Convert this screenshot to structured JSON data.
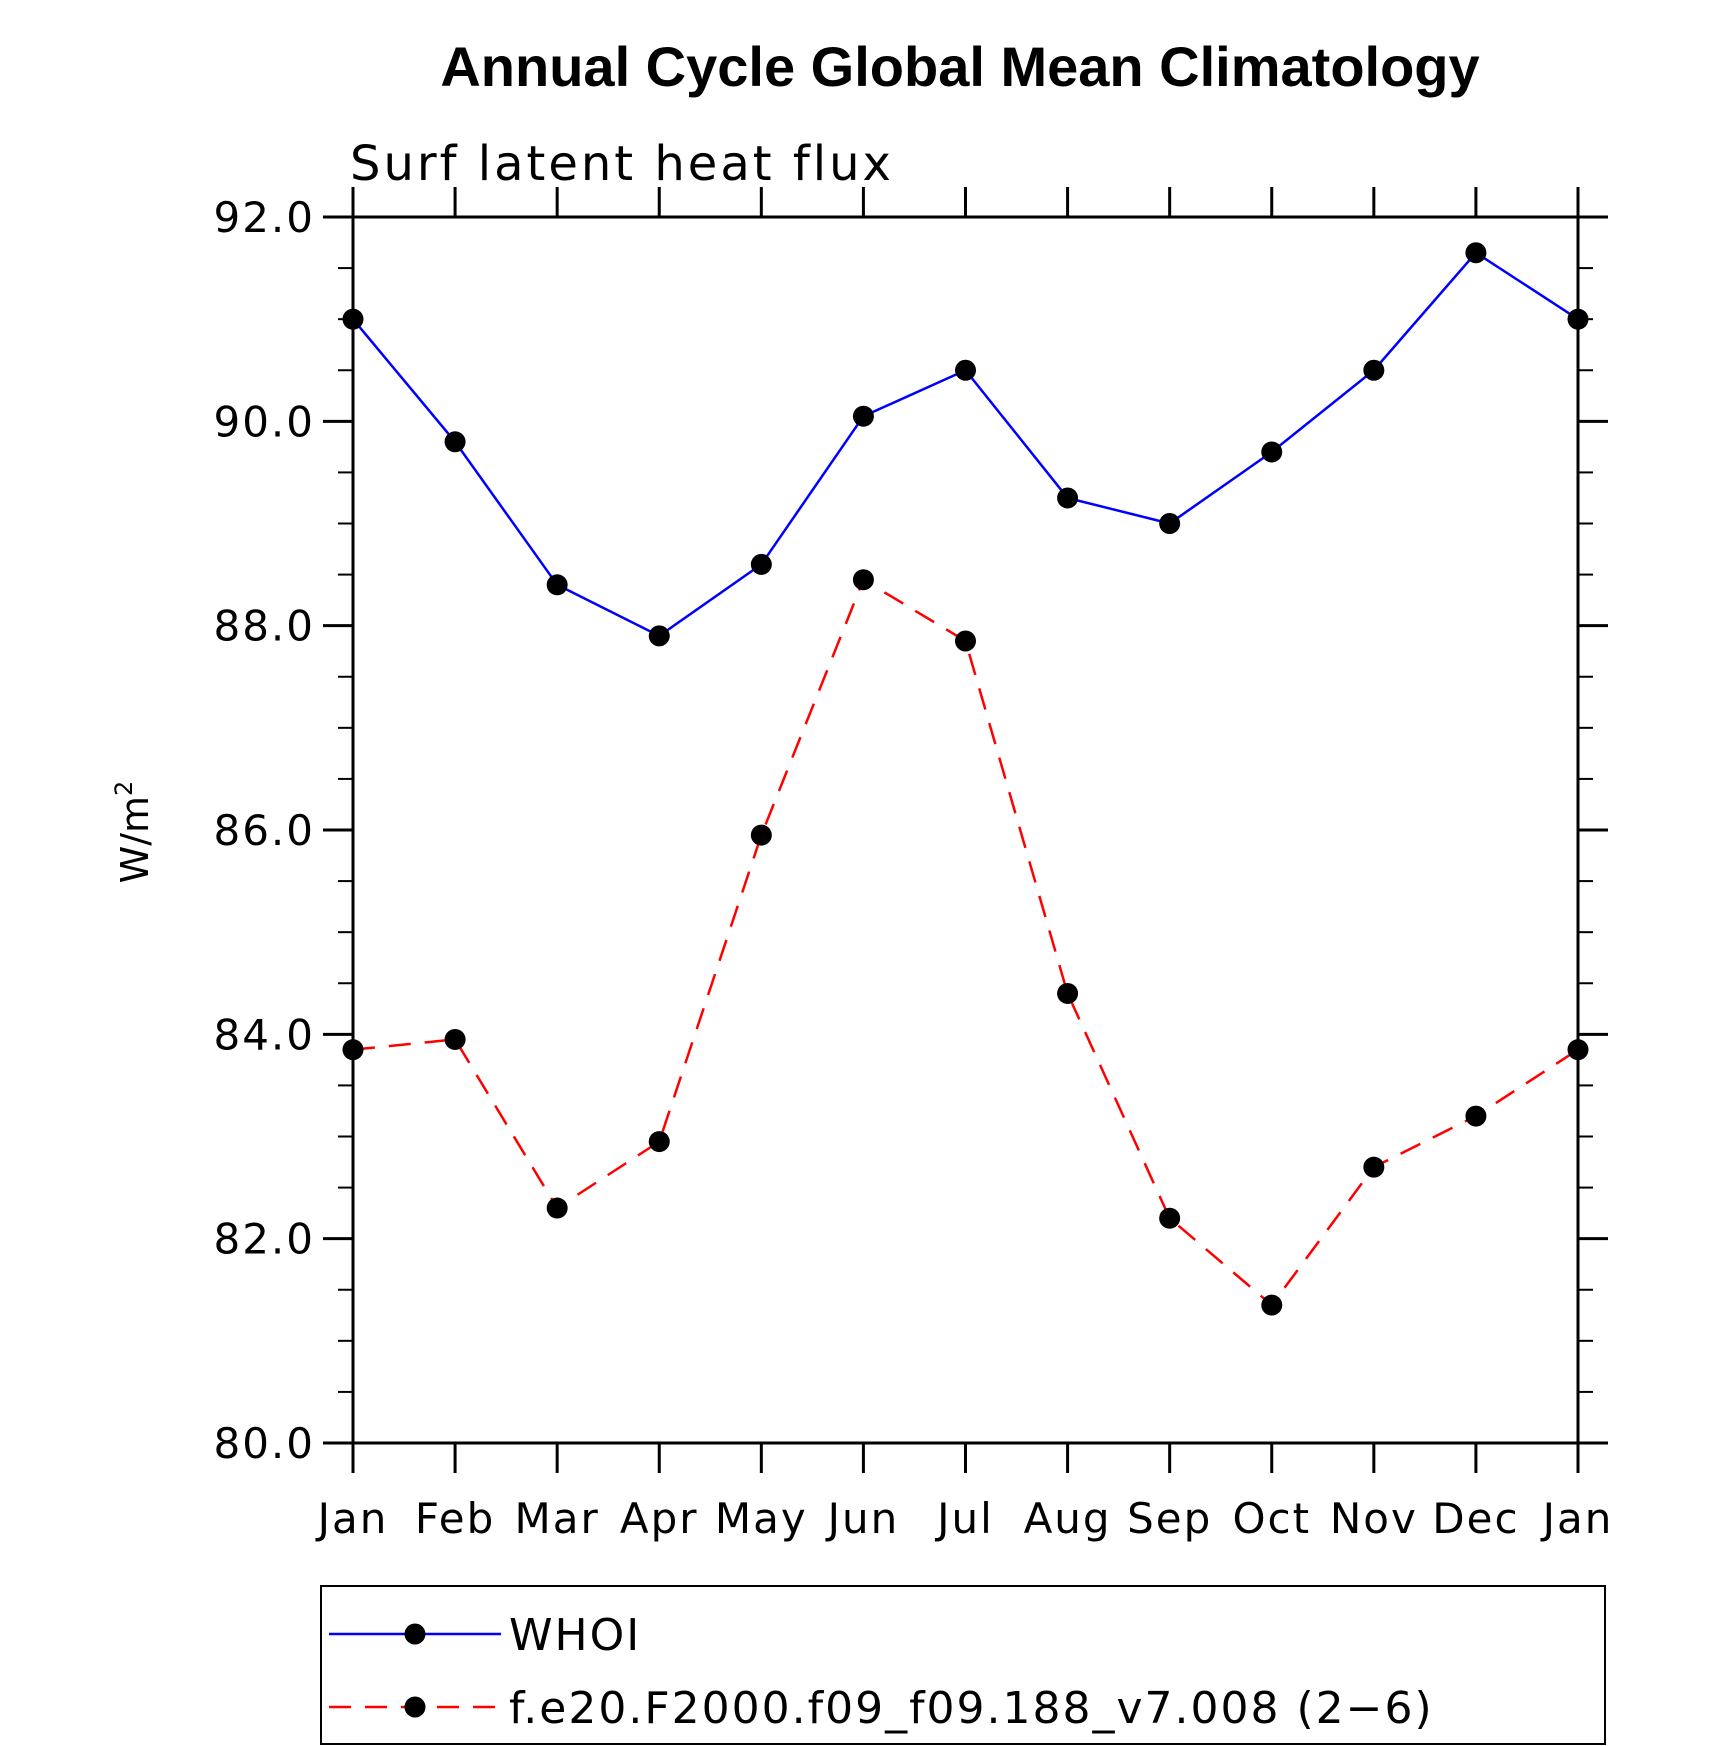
{
  "chart_data": {
    "type": "line",
    "title": "Annual Cycle Global Mean Climatology",
    "subtitle": "Surf latent heat flux",
    "xlabel": "",
    "ylabel": "W/m",
    "ylabel_superscript": "2",
    "categories": [
      "Jan",
      "Feb",
      "Mar",
      "Apr",
      "May",
      "Jun",
      "Jul",
      "Aug",
      "Sep",
      "Oct",
      "Nov",
      "Dec",
      "Jan"
    ],
    "ylim": [
      80.0,
      92.0
    ],
    "yticks": [
      "80.0",
      "82.0",
      "84.0",
      "86.0",
      "88.0",
      "90.0",
      "92.0"
    ],
    "grid": false,
    "legend_position": "bottom",
    "series": [
      {
        "name": "WHOI",
        "color": "#0000ff",
        "line_style": "solid",
        "marker": "filled-circle",
        "values": [
          91.0,
          89.8,
          88.4,
          87.9,
          88.6,
          90.05,
          90.5,
          89.25,
          89.0,
          89.7,
          90.5,
          91.65,
          91.0
        ]
      },
      {
        "name": "f.e20.F2000.f09_f09.188_v7.008 (2−6)",
        "color": "#ff0000",
        "line_style": "dashed",
        "marker": "filled-circle",
        "values": [
          83.85,
          83.95,
          82.3,
          82.95,
          85.95,
          88.45,
          87.85,
          84.4,
          82.2,
          81.35,
          82.7,
          83.2,
          83.85
        ]
      }
    ]
  }
}
